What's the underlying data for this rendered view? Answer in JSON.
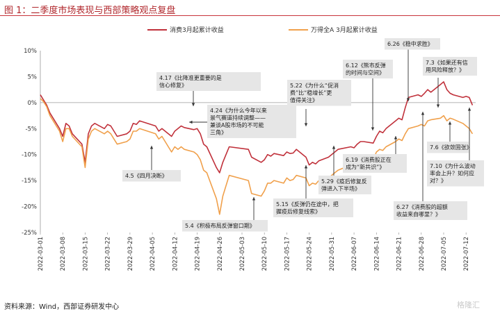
{
  "figure": {
    "title": "图 1：二季度市场表现与西部策略观点复盘",
    "source": "资料来源：Wind，西部证券研发中心",
    "watermark": "格隆汇"
  },
  "chart_data": {
    "type": "line",
    "yunit": "%",
    "ylim": [
      -25,
      10
    ],
    "yticks": [
      10,
      5,
      0,
      -5,
      -10,
      -15,
      -20,
      -25
    ],
    "xrange": [
      "2022-03-01",
      "2022-07-15"
    ],
    "xticks": [
      "2022-03-01",
      "2022-03-08",
      "2022-03-15",
      "2022-03-22",
      "2022-03-29",
      "2022-04-05",
      "2022-04-12",
      "2022-04-19",
      "2022-04-26",
      "2022-05-03",
      "2022-05-10",
      "2022-05-17",
      "2022-05-24",
      "2022-05-31",
      "2022-06-07",
      "2022-06-14",
      "2022-06-21",
      "2022-06-28",
      "2022-07-05",
      "2022-07-12"
    ],
    "legend_position": "top-center",
    "series": [
      {
        "name": "消费3月起累计收益",
        "color": "#c0303a",
        "points": [
          [
            "2022-03-01",
            1.5
          ],
          [
            "2022-03-02",
            0.5
          ],
          [
            "2022-03-03",
            -0.5
          ],
          [
            "2022-03-04",
            -2
          ],
          [
            "2022-03-07",
            -5
          ],
          [
            "2022-03-08",
            -6.5
          ],
          [
            "2022-03-09",
            -4
          ],
          [
            "2022-03-10",
            -4.5
          ],
          [
            "2022-03-11",
            -6
          ],
          [
            "2022-03-14",
            -8
          ],
          [
            "2022-03-15",
            -11.5
          ],
          [
            "2022-03-16",
            -6
          ],
          [
            "2022-03-17",
            -4.5
          ],
          [
            "2022-03-18",
            -4
          ],
          [
            "2022-03-21",
            -5
          ],
          [
            "2022-03-22",
            -4.2
          ],
          [
            "2022-03-23",
            -4.5
          ],
          [
            "2022-03-24",
            -5.5
          ],
          [
            "2022-03-25",
            -6.5
          ],
          [
            "2022-03-28",
            -6
          ],
          [
            "2022-03-29",
            -5.5
          ],
          [
            "2022-03-30",
            -4
          ],
          [
            "2022-03-31",
            -4.2
          ],
          [
            "2022-04-01",
            -3.5
          ],
          [
            "2022-04-06",
            -4.5
          ],
          [
            "2022-04-07",
            -5.5
          ],
          [
            "2022-04-08",
            -5
          ],
          [
            "2022-04-11",
            -6.5
          ],
          [
            "2022-04-12",
            -5.5
          ],
          [
            "2022-04-13",
            -5
          ],
          [
            "2022-04-14",
            -4.5
          ],
          [
            "2022-04-15",
            -4.8
          ],
          [
            "2022-04-18",
            -5.2
          ],
          [
            "2022-04-19",
            -5
          ],
          [
            "2022-04-20",
            -6
          ],
          [
            "2022-04-21",
            -8
          ],
          [
            "2022-04-22",
            -8.5
          ],
          [
            "2022-04-25",
            -12.5
          ],
          [
            "2022-04-26",
            -13.5
          ],
          [
            "2022-04-27",
            -11.5
          ],
          [
            "2022-04-28",
            -10
          ],
          [
            "2022-04-29",
            -8.5
          ],
          [
            "2022-05-05",
            -9
          ],
          [
            "2022-05-06",
            -10.5
          ],
          [
            "2022-05-09",
            -11.5
          ],
          [
            "2022-05-10",
            -11
          ],
          [
            "2022-05-11",
            -10
          ],
          [
            "2022-05-12",
            -10.3
          ],
          [
            "2022-05-13",
            -9.8
          ],
          [
            "2022-05-16",
            -10.2
          ],
          [
            "2022-05-17",
            -9.5
          ],
          [
            "2022-05-18",
            -9.8
          ],
          [
            "2022-05-19",
            -9.7
          ],
          [
            "2022-05-20",
            -9
          ],
          [
            "2022-05-23",
            -10.5
          ],
          [
            "2022-05-24",
            -12
          ],
          [
            "2022-05-25",
            -11.5
          ],
          [
            "2022-05-26",
            -11.8
          ],
          [
            "2022-05-27",
            -11.2
          ],
          [
            "2022-05-30",
            -10.5
          ],
          [
            "2022-05-31",
            -10
          ],
          [
            "2022-06-01",
            -9.5
          ],
          [
            "2022-06-02",
            -9
          ],
          [
            "2022-06-06",
            -8.5
          ],
          [
            "2022-06-07",
            -8.7
          ],
          [
            "2022-06-08",
            -8
          ],
          [
            "2022-06-09",
            -7.5
          ],
          [
            "2022-06-10",
            -7.5
          ],
          [
            "2022-06-13",
            -7.8
          ],
          [
            "2022-06-14",
            -6.5
          ],
          [
            "2022-06-15",
            -5.5
          ],
          [
            "2022-06-16",
            -5.8
          ],
          [
            "2022-06-17",
            -5
          ],
          [
            "2022-06-20",
            -3.5
          ],
          [
            "2022-06-21",
            -3
          ],
          [
            "2022-06-22",
            -3.3
          ],
          [
            "2022-06-23",
            -1
          ],
          [
            "2022-06-24",
            1
          ],
          [
            "2022-06-27",
            1.5
          ],
          [
            "2022-06-28",
            1.2
          ],
          [
            "2022-06-29",
            1.8
          ],
          [
            "2022-06-30",
            2.5
          ],
          [
            "2022-07-01",
            2
          ],
          [
            "2022-07-04",
            3.5
          ],
          [
            "2022-07-05",
            4
          ],
          [
            "2022-07-06",
            2.5
          ],
          [
            "2022-07-07",
            1.8
          ],
          [
            "2022-07-08",
            1.5
          ],
          [
            "2022-07-11",
            1
          ],
          [
            "2022-07-12",
            1.2
          ],
          [
            "2022-07-13",
            1
          ],
          [
            "2022-07-14",
            -0.5
          ]
        ]
      },
      {
        "name": "万得全A 3月起累计收益",
        "color": "#f0a04b",
        "points": [
          [
            "2022-03-01",
            0.8
          ],
          [
            "2022-03-02",
            0.2
          ],
          [
            "2022-03-03",
            -0.8
          ],
          [
            "2022-03-04",
            -2.5
          ],
          [
            "2022-03-07",
            -5.5
          ],
          [
            "2022-03-08",
            -7.5
          ],
          [
            "2022-03-09",
            -5
          ],
          [
            "2022-03-10",
            -5
          ],
          [
            "2022-03-11",
            -6.5
          ],
          [
            "2022-03-14",
            -8.5
          ],
          [
            "2022-03-15",
            -12.5
          ],
          [
            "2022-03-16",
            -7
          ],
          [
            "2022-03-17",
            -5.5
          ],
          [
            "2022-03-18",
            -5
          ],
          [
            "2022-03-21",
            -6
          ],
          [
            "2022-03-22",
            -5.5
          ],
          [
            "2022-03-23",
            -6
          ],
          [
            "2022-03-24",
            -7
          ],
          [
            "2022-03-25",
            -8
          ],
          [
            "2022-03-28",
            -7.5
          ],
          [
            "2022-03-29",
            -7
          ],
          [
            "2022-03-30",
            -5.5
          ],
          [
            "2022-03-31",
            -5.5
          ],
          [
            "2022-04-01",
            -5
          ],
          [
            "2022-04-06",
            -6
          ],
          [
            "2022-04-07",
            -7
          ],
          [
            "2022-04-08",
            -6.5
          ],
          [
            "2022-04-11",
            -9.5
          ],
          [
            "2022-04-12",
            -8.5
          ],
          [
            "2022-04-13",
            -9
          ],
          [
            "2022-04-14",
            -8.5
          ],
          [
            "2022-04-15",
            -9
          ],
          [
            "2022-04-18",
            -9.5
          ],
          [
            "2022-04-19",
            -10
          ],
          [
            "2022-04-20",
            -11
          ],
          [
            "2022-04-21",
            -13
          ],
          [
            "2022-04-22",
            -13.5
          ],
          [
            "2022-04-25",
            -18.5
          ],
          [
            "2022-04-26",
            -21.5
          ],
          [
            "2022-04-27",
            -18
          ],
          [
            "2022-04-28",
            -16
          ],
          [
            "2022-04-29",
            -14
          ],
          [
            "2022-05-05",
            -15
          ],
          [
            "2022-05-06",
            -17.5
          ],
          [
            "2022-05-09",
            -18
          ],
          [
            "2022-05-10",
            -17
          ],
          [
            "2022-05-11",
            -15.5
          ],
          [
            "2022-05-12",
            -15.5
          ],
          [
            "2022-05-13",
            -15
          ],
          [
            "2022-05-16",
            -15.5
          ],
          [
            "2022-05-17",
            -14.5
          ],
          [
            "2022-05-18",
            -15
          ],
          [
            "2022-05-19",
            -14.8
          ],
          [
            "2022-05-20",
            -14
          ],
          [
            "2022-05-23",
            -14.5
          ],
          [
            "2022-05-24",
            -16
          ],
          [
            "2022-05-25",
            -15.5
          ],
          [
            "2022-05-26",
            -15.7
          ],
          [
            "2022-05-27",
            -15
          ],
          [
            "2022-05-30",
            -14.5
          ],
          [
            "2022-05-31",
            -14
          ],
          [
            "2022-06-01",
            -13.5
          ],
          [
            "2022-06-02",
            -13
          ],
          [
            "2022-06-06",
            -12
          ],
          [
            "2022-06-07",
            -12
          ],
          [
            "2022-06-08",
            -11.5
          ],
          [
            "2022-06-09",
            -11
          ],
          [
            "2022-06-10",
            -10.5
          ],
          [
            "2022-06-13",
            -11
          ],
          [
            "2022-06-14",
            -9.5
          ],
          [
            "2022-06-15",
            -9
          ],
          [
            "2022-06-16",
            -9.2
          ],
          [
            "2022-06-17",
            -8.5
          ],
          [
            "2022-06-20",
            -7.5
          ],
          [
            "2022-06-21",
            -7
          ],
          [
            "2022-06-22",
            -7.3
          ],
          [
            "2022-06-23",
            -6
          ],
          [
            "2022-06-24",
            -5
          ],
          [
            "2022-06-27",
            -4.5
          ],
          [
            "2022-06-28",
            -4.2
          ],
          [
            "2022-06-29",
            -4.5
          ],
          [
            "2022-06-30",
            -3.5
          ],
          [
            "2022-07-01",
            -3.3
          ],
          [
            "2022-07-04",
            -3
          ],
          [
            "2022-07-05",
            -2.5
          ],
          [
            "2022-07-06",
            -3.5
          ],
          [
            "2022-07-07",
            -3
          ],
          [
            "2022-07-08",
            -3.2
          ],
          [
            "2022-07-11",
            -4
          ],
          [
            "2022-07-12",
            -4.5
          ],
          [
            "2022-07-13",
            -5
          ],
          [
            "2022-07-14",
            -6
          ]
        ]
      }
    ],
    "annotations": [
      {
        "id": "a0417",
        "date": "2022-04-17",
        "lines": [
          "4.17《比降准更重要的是",
          "信心修复》"
        ]
      },
      {
        "id": "a0424",
        "date": "2022-04-24",
        "lines": [
          "4.24《为什么今年以来",
          "景气赛道持续调整——",
          "兼谈A股市场的不可能",
          "三角》"
        ]
      },
      {
        "id": "a0405",
        "date": "2022-04-05",
        "lines": [
          "4.5《四月决断》"
        ]
      },
      {
        "id": "a0504",
        "date": "2022-05-04",
        "lines": [
          "5.4《积极布局反弹窗口期》"
        ]
      },
      {
        "id": "a0522",
        "date": "2022-05-22",
        "lines": [
          "5.22《为什么“促消",
          "费”比“稳增长”更",
          "值得关注》"
        ]
      },
      {
        "id": "a0515",
        "date": "2022-05-15",
        "lines": [
          "5.15《反弹仍在途中，把",
          "握疫后修复线索》"
        ]
      },
      {
        "id": "a0529",
        "date": "2022-05-29",
        "lines": [
          "5.29《疫后修复反",
          "弹进入下半场》"
        ]
      },
      {
        "id": "a0612",
        "date": "2022-06-12",
        "lines": [
          "6.12《熊市反弹",
          "的时间与空间》"
        ]
      },
      {
        "id": "a0619",
        "date": "2022-06-19",
        "lines": [
          "6.19《消费股正在",
          "成为“新共识”》"
        ]
      },
      {
        "id": "a0626",
        "date": "2022-06-26",
        "lines": [
          "6.26《稳中求胜》"
        ]
      },
      {
        "id": "a0627",
        "date": "2022-06-27",
        "lines": [
          "6.27《消费股的超额",
          "收益来自哪里？》"
        ]
      },
      {
        "id": "a0703",
        "date": "2022-07-03",
        "lines": [
          "7.3《如果还有信",
          "用风险释放？》"
        ]
      },
      {
        "id": "a0706",
        "date": "2022-07-06",
        "lines": [
          "7.6《欲敛固张》"
        ]
      },
      {
        "id": "a0710",
        "date": "2022-07-10",
        "lines": [
          "7.10《为什么波动",
          "率会上升？如何应",
          "对？》"
        ]
      }
    ]
  }
}
